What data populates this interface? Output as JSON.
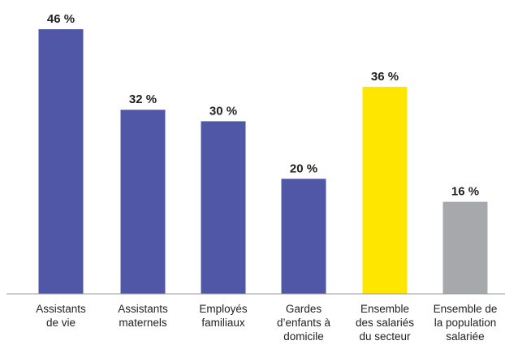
{
  "chart_data": {
    "type": "bar",
    "categories": [
      [
        "Assistants",
        "de vie"
      ],
      [
        "Assistants",
        "maternels"
      ],
      [
        "Employés",
        "familiaux"
      ],
      [
        "Gardes",
        "d’enfants à",
        "domicile"
      ],
      [
        "Ensemble",
        "des salariés",
        "du secteur"
      ],
      [
        "Ensemble de",
        "la population",
        "salariée"
      ]
    ],
    "values": [
      46,
      32,
      30,
      20,
      36,
      16
    ],
    "value_labels": [
      "46 %",
      "32 %",
      "30 %",
      "20 %",
      "36 %",
      "16 %"
    ],
    "bar_colors": [
      "#4f57a6",
      "#4f57a6",
      "#4f57a6",
      "#4f57a6",
      "#ffe600",
      "#a7a8ab"
    ],
    "ylim": [
      0,
      46
    ],
    "grid": false,
    "axis_color": "#999999",
    "title": "",
    "xlabel": "",
    "ylabel": ""
  }
}
